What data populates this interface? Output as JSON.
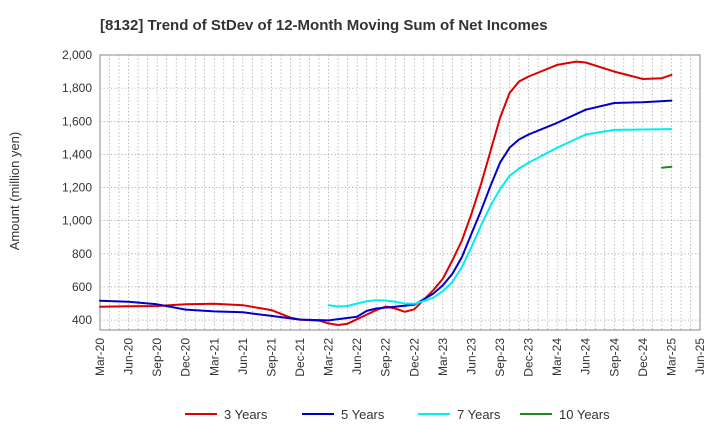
{
  "chart_data": {
    "type": "line",
    "title": "[8132]  Trend of StDev of 12-Month Moving Sum of Net Incomes",
    "ylabel": "Amount (million yen)",
    "xlabel": "",
    "ylim": [
      340,
      2000
    ],
    "yticks": [
      400,
      600,
      800,
      1000,
      1200,
      1400,
      1600,
      1800,
      2000
    ],
    "ytick_labels": [
      "400",
      "600",
      "800",
      "1,000",
      "1,200",
      "1,400",
      "1,600",
      "1,800",
      "2,000"
    ],
    "xlim": [
      "Mar-20",
      "Jun-25"
    ],
    "xtick_labels": [
      "Mar-20",
      "Jun-20",
      "Sep-20",
      "Dec-20",
      "Mar-21",
      "Jun-21",
      "Sep-21",
      "Dec-21",
      "Mar-22",
      "Jun-22",
      "Sep-22",
      "Dec-22",
      "Mar-23",
      "Jun-23",
      "Sep-23",
      "Dec-23",
      "Mar-24",
      "Jun-24",
      "Sep-24",
      "Dec-24",
      "Mar-25",
      "Jun-25"
    ],
    "grid": true,
    "legend_position": "bottom",
    "series": [
      {
        "name": "3 Years",
        "color": "#dd0000",
        "points": [
          [
            "Mar-20",
            480
          ],
          [
            "Jun-20",
            483
          ],
          [
            "Sep-20",
            485
          ],
          [
            "Dec-20",
            495
          ],
          [
            "Mar-21",
            498
          ],
          [
            "Jun-21",
            490
          ],
          [
            "Sep-21",
            460
          ],
          [
            "Nov-21",
            415
          ],
          [
            "Dec-21",
            403
          ],
          [
            "Feb-22",
            397
          ],
          [
            "Mar-22",
            380
          ],
          [
            "Apr-22",
            370
          ],
          [
            "May-22",
            378
          ],
          [
            "Jun-22",
            405
          ],
          [
            "Aug-22",
            460
          ],
          [
            "Sep-22",
            482
          ],
          [
            "Oct-22",
            470
          ],
          [
            "Nov-22",
            450
          ],
          [
            "Dec-22",
            465
          ],
          [
            "Feb-23",
            580
          ],
          [
            "Mar-23",
            650
          ],
          [
            "Apr-23",
            760
          ],
          [
            "May-23",
            880
          ],
          [
            "Jun-23",
            1040
          ],
          [
            "Jul-23",
            1220
          ],
          [
            "Aug-23",
            1420
          ],
          [
            "Sep-23",
            1620
          ],
          [
            "Oct-23",
            1770
          ],
          [
            "Nov-23",
            1840
          ],
          [
            "Dec-23",
            1870
          ],
          [
            "Mar-24",
            1940
          ],
          [
            "May-24",
            1960
          ],
          [
            "Jun-24",
            1955
          ],
          [
            "Sep-24",
            1900
          ],
          [
            "Dec-24",
            1855
          ],
          [
            "Feb-25",
            1860
          ],
          [
            "Mar-25",
            1880
          ]
        ]
      },
      {
        "name": "5 Years",
        "color": "#0000cc",
        "points": [
          [
            "Mar-20",
            517
          ],
          [
            "Jun-20",
            510
          ],
          [
            "Sep-20",
            495
          ],
          [
            "Dec-20",
            463
          ],
          [
            "Mar-21",
            452
          ],
          [
            "Jun-21",
            447
          ],
          [
            "Sep-21",
            425
          ],
          [
            "Dec-21",
            403
          ],
          [
            "Mar-22",
            398
          ],
          [
            "Jun-22",
            420
          ],
          [
            "Jul-22",
            455
          ],
          [
            "Aug-22",
            470
          ],
          [
            "Sep-22",
            475
          ],
          [
            "Dec-22",
            492
          ],
          [
            "Feb-23",
            560
          ],
          [
            "Mar-23",
            610
          ],
          [
            "Apr-23",
            680
          ],
          [
            "May-23",
            780
          ],
          [
            "Jun-23",
            920
          ],
          [
            "Jul-23",
            1060
          ],
          [
            "Aug-23",
            1210
          ],
          [
            "Sep-23",
            1350
          ],
          [
            "Oct-23",
            1440
          ],
          [
            "Nov-23",
            1490
          ],
          [
            "Dec-23",
            1520
          ],
          [
            "Mar-24",
            1590
          ],
          [
            "Jun-24",
            1670
          ],
          [
            "Sep-24",
            1710
          ],
          [
            "Dec-24",
            1715
          ],
          [
            "Mar-25",
            1725
          ]
        ]
      },
      {
        "name": "7 Years",
        "color": "#00eeee",
        "points": [
          [
            "Mar-22",
            490
          ],
          [
            "Apr-22",
            482
          ],
          [
            "May-22",
            485
          ],
          [
            "Jun-22",
            500
          ],
          [
            "Jul-22",
            513
          ],
          [
            "Aug-22",
            520
          ],
          [
            "Sep-22",
            518
          ],
          [
            "Oct-22",
            510
          ],
          [
            "Nov-22",
            500
          ],
          [
            "Dec-22",
            498
          ],
          [
            "Jan-23",
            515
          ],
          [
            "Feb-23",
            535
          ],
          [
            "Mar-23",
            575
          ],
          [
            "Apr-23",
            630
          ],
          [
            "May-23",
            720
          ],
          [
            "Jun-23",
            840
          ],
          [
            "Jul-23",
            970
          ],
          [
            "Aug-23",
            1090
          ],
          [
            "Sep-23",
            1190
          ],
          [
            "Oct-23",
            1270
          ],
          [
            "Nov-23",
            1315
          ],
          [
            "Dec-23",
            1350
          ],
          [
            "Mar-24",
            1440
          ],
          [
            "Jun-24",
            1520
          ],
          [
            "Sep-24",
            1548
          ],
          [
            "Dec-24",
            1550
          ],
          [
            "Mar-25",
            1553
          ]
        ]
      },
      {
        "name": "10 Years",
        "color": "#228822",
        "points": [
          [
            "Feb-25",
            1320
          ],
          [
            "Mar-25",
            1325
          ]
        ]
      }
    ]
  }
}
